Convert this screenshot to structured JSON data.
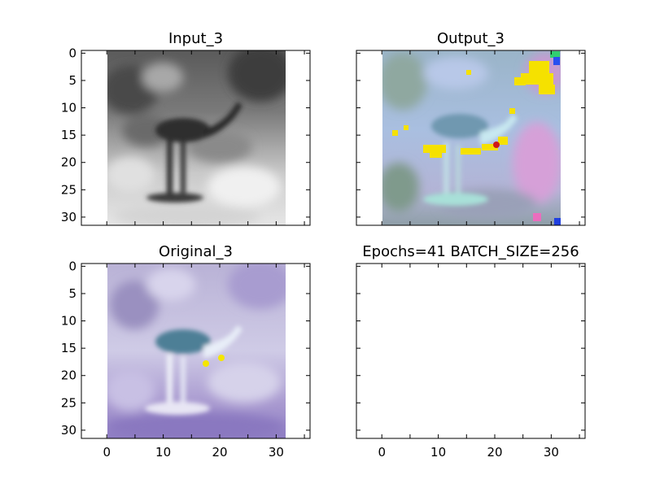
{
  "chart_data": [
    {
      "type": "image",
      "title": "Input_3",
      "colormap": "grayscale",
      "y_ticks": [
        "0",
        "5",
        "10",
        "15",
        "20",
        "25",
        "30"
      ],
      "x_ticks": [],
      "xlim": [
        -4.5,
        36
      ],
      "ylim": [
        31.5,
        -0.5
      ],
      "image_extent": [
        -0.5,
        31.5
      ],
      "annotation": "grayscale photo of a heron-like bird"
    },
    {
      "type": "image",
      "title": "Output_3",
      "colormap": "rgb",
      "y_ticks": [],
      "x_ticks": [],
      "xlim": [
        -4.5,
        36
      ],
      "ylim": [
        31.5,
        -0.5
      ],
      "image_extent": [
        -0.5,
        31.5
      ],
      "annotation": "colorized reconstruction with yellow and red artifacts"
    },
    {
      "type": "image",
      "title": "Original_3",
      "colormap": "rgb",
      "y_ticks": [
        "0",
        "5",
        "10",
        "15",
        "20",
        "25",
        "30"
      ],
      "x_ticks": [
        "0",
        "10",
        "20",
        "30"
      ],
      "xlim": [
        -4.5,
        36
      ],
      "ylim": [
        31.5,
        -0.5
      ],
      "image_extent": [
        -0.5,
        31.5
      ],
      "annotation": "original purple-tinted photo of the bird"
    },
    {
      "type": "empty",
      "title": "Epochs=41 BATCH_SIZE=256",
      "y_ticks": [],
      "x_ticks": [
        "0",
        "10",
        "20",
        "30"
      ],
      "xlim": [
        -4.5,
        36
      ],
      "ylim": [
        31.5,
        -0.5
      ]
    }
  ],
  "colors": {
    "axis": "#000000",
    "background": "#ffffff",
    "input_light": "#d8d8d8",
    "input_dark": "#3a3a3a",
    "output_base": "#9fb6d0",
    "output_yellow": "#f5e100",
    "output_red": "#d01818",
    "original_base": "#b8b3d8",
    "original_dark": "#4d7f96",
    "original_yellow": "#f5e600"
  }
}
